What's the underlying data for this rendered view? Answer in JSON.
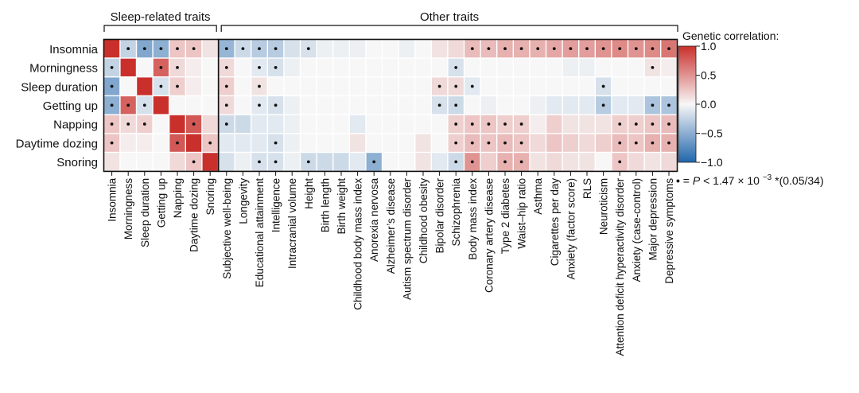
{
  "chart_data": {
    "type": "heatmap",
    "title": "",
    "groups": [
      {
        "label": "Sleep-related traits",
        "columns": 7
      },
      {
        "label": "Other traits",
        "columns": 28
      }
    ],
    "rows": [
      "Insomnia",
      "Morningness",
      "Sleep duration",
      "Getting up",
      "Napping",
      "Daytime dozing",
      "Snoring"
    ],
    "columns": [
      "Insomnia",
      "Morningness",
      "Sleep duration",
      "Getting up",
      "Napping",
      "Daytime dozing",
      "Snoring",
      "Subjective well-being",
      "Longevity",
      "Educational attainment",
      "Intelligence",
      "Intracranial volume",
      "Height",
      "Birth length",
      "Birth weight",
      "Childhood body mass index",
      "Anorexia nervosa",
      "Alzheimer’s disease",
      "Autism spectrum disorder",
      "Childhood obesity",
      "Bipolar disorder",
      "Schizophrenia",
      "Body mass index",
      "Coronary artery disease",
      "Type 2 diabetes",
      "Waist–hip ratio",
      "Asthma",
      "Cigarettes per day",
      "Anxiety (factor score)",
      "RLS",
      "Neuroticism",
      "Attention deficit hyperactivity disorder",
      "Anxiety (case-control)",
      "Major depression",
      "Depressive symptoms"
    ],
    "values": [
      [
        1.0,
        -0.25,
        -0.55,
        -0.5,
        0.25,
        0.25,
        0.1,
        -0.45,
        -0.2,
        -0.3,
        -0.3,
        -0.15,
        -0.15,
        -0.05,
        -0.05,
        -0.05,
        0.0,
        0.0,
        -0.05,
        0.0,
        0.1,
        0.15,
        0.3,
        0.3,
        0.35,
        0.35,
        0.35,
        0.4,
        0.45,
        0.45,
        0.5,
        0.55,
        0.5,
        0.55,
        0.65
      ],
      [
        -0.25,
        1.0,
        0.0,
        0.75,
        0.15,
        0.05,
        0.0,
        0.15,
        0.0,
        -0.1,
        -0.15,
        -0.05,
        0.0,
        0.0,
        0.0,
        0.0,
        0.0,
        0.0,
        0.0,
        0.0,
        0.0,
        -0.15,
        0.0,
        0.0,
        0.0,
        0.0,
        0.0,
        0.0,
        -0.05,
        -0.05,
        0.0,
        0.0,
        0.0,
        0.1,
        0.05
      ],
      [
        -0.55,
        0.0,
        1.0,
        -0.15,
        0.2,
        0.05,
        0.0,
        0.2,
        0.0,
        0.1,
        0.0,
        0.0,
        0.0,
        0.0,
        0.0,
        0.0,
        0.0,
        0.0,
        0.0,
        0.0,
        0.15,
        0.15,
        -0.1,
        0.0,
        0.0,
        0.0,
        0.0,
        0.0,
        0.0,
        0.0,
        -0.15,
        0.0,
        0.0,
        0.0,
        0.0
      ],
      [
        -0.5,
        0.75,
        -0.15,
        1.0,
        0.0,
        0.0,
        0.0,
        0.15,
        0.0,
        -0.1,
        -0.15,
        -0.05,
        0.0,
        0.0,
        0.0,
        0.0,
        0.0,
        0.0,
        0.0,
        0.0,
        -0.15,
        -0.2,
        0.0,
        -0.05,
        0.0,
        0.0,
        -0.05,
        -0.1,
        -0.1,
        -0.1,
        -0.3,
        -0.1,
        -0.1,
        -0.35,
        -0.35
      ],
      [
        0.25,
        0.15,
        0.2,
        0.0,
        1.0,
        0.8,
        0.15,
        -0.2,
        -0.2,
        -0.1,
        -0.1,
        -0.05,
        0.0,
        0.0,
        0.0,
        -0.1,
        0.0,
        0.0,
        0.0,
        0.0,
        0.0,
        0.2,
        0.25,
        0.25,
        0.2,
        0.2,
        0.05,
        0.2,
        0.1,
        0.1,
        0.1,
        0.2,
        0.2,
        0.25,
        0.3
      ],
      [
        0.25,
        0.05,
        0.05,
        0.0,
        0.8,
        1.0,
        0.25,
        -0.1,
        -0.1,
        -0.1,
        -0.15,
        -0.05,
        0.0,
        0.0,
        0.0,
        0.1,
        0.0,
        0.0,
        0.0,
        0.1,
        0.0,
        0.2,
        0.3,
        0.25,
        0.3,
        0.25,
        0.15,
        0.25,
        0.2,
        0.15,
        0.2,
        0.3,
        0.25,
        0.35,
        0.35
      ],
      [
        0.1,
        0.0,
        0.0,
        0.0,
        0.15,
        0.25,
        1.0,
        -0.15,
        -0.05,
        -0.15,
        -0.15,
        -0.05,
        -0.2,
        -0.2,
        -0.2,
        -0.1,
        -0.5,
        0.0,
        0.0,
        0.1,
        -0.1,
        -0.2,
        0.5,
        0.2,
        0.35,
        0.35,
        0.1,
        0.15,
        0.1,
        0.1,
        0.0,
        0.25,
        0.15,
        0.1,
        0.15
      ]
    ],
    "significant": [
      [
        0,
        1,
        1,
        1,
        1,
        1,
        0,
        1,
        1,
        1,
        1,
        0,
        1,
        0,
        0,
        0,
        0,
        0,
        0,
        0,
        0,
        0,
        1,
        1,
        1,
        1,
        1,
        1,
        1,
        1,
        1,
        1,
        1,
        1,
        1
      ],
      [
        1,
        0,
        0,
        1,
        1,
        0,
        0,
        1,
        0,
        1,
        1,
        0,
        0,
        0,
        0,
        0,
        0,
        0,
        0,
        0,
        0,
        1,
        0,
        0,
        0,
        0,
        0,
        0,
        0,
        0,
        0,
        0,
        0,
        1,
        0
      ],
      [
        1,
        0,
        0,
        1,
        1,
        0,
        0,
        1,
        0,
        1,
        0,
        0,
        0,
        0,
        0,
        0,
        0,
        0,
        0,
        0,
        1,
        1,
        1,
        0,
        0,
        0,
        0,
        0,
        0,
        0,
        1,
        0,
        0,
        0,
        0
      ],
      [
        1,
        1,
        1,
        0,
        0,
        0,
        0,
        1,
        0,
        1,
        1,
        0,
        0,
        0,
        0,
        0,
        0,
        0,
        0,
        0,
        1,
        1,
        0,
        0,
        0,
        0,
        0,
        0,
        0,
        0,
        1,
        0,
        0,
        1,
        1
      ],
      [
        1,
        1,
        1,
        0,
        0,
        1,
        0,
        1,
        0,
        0,
        0,
        0,
        0,
        0,
        0,
        0,
        0,
        0,
        0,
        0,
        0,
        1,
        1,
        1,
        1,
        1,
        0,
        0,
        0,
        0,
        0,
        1,
        1,
        1,
        1
      ],
      [
        1,
        0,
        0,
        0,
        1,
        0,
        1,
        0,
        0,
        0,
        1,
        0,
        0,
        0,
        0,
        0,
        0,
        0,
        0,
        0,
        0,
        1,
        1,
        1,
        1,
        1,
        0,
        0,
        0,
        0,
        0,
        1,
        1,
        1,
        1
      ],
      [
        0,
        0,
        0,
        0,
        0,
        1,
        0,
        0,
        0,
        1,
        1,
        0,
        1,
        0,
        0,
        0,
        1,
        0,
        0,
        0,
        0,
        1,
        1,
        0,
        1,
        1,
        0,
        0,
        0,
        0,
        0,
        1,
        0,
        0,
        0
      ]
    ],
    "color_scale": {
      "min": -1.0,
      "max": 1.0,
      "low_color": "#2166ac",
      "mid_color": "#f7f7f7",
      "high_color": "#c9302c"
    },
    "legend": {
      "title": "Genetic correlation:",
      "ticks": [
        "1.0",
        "0.5",
        "0.0",
        "−0.5",
        "−1.0"
      ],
      "tick_values": [
        1.0,
        0.5,
        0.0,
        -0.5,
        -1.0
      ],
      "placement": "right"
    },
    "significance_note": {
      "prefix": "= ",
      "p": "P",
      "lt": " < 1.47 × 10",
      "exp": "−3",
      "suffix": " *(0.05/34)"
    }
  }
}
